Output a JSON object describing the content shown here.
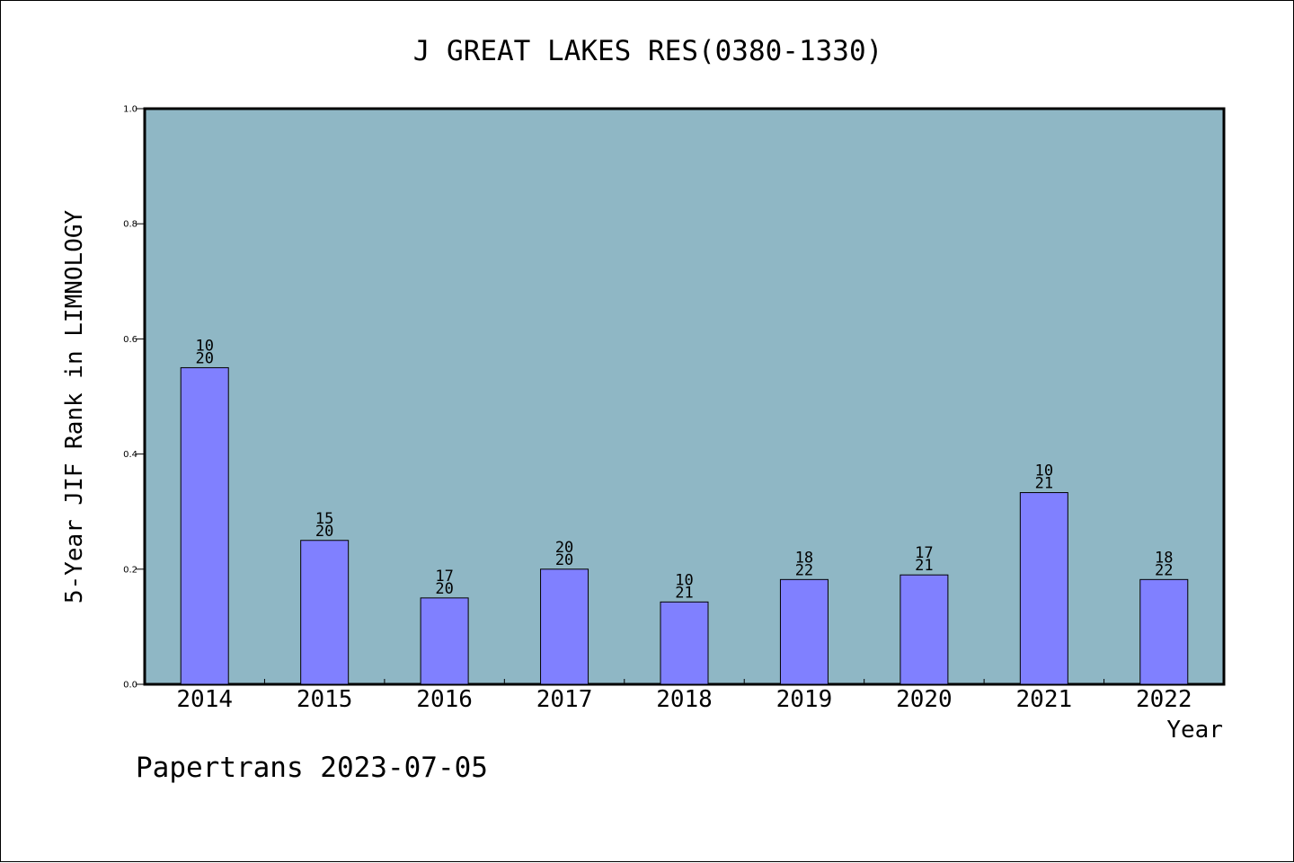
{
  "chart_data": {
    "type": "bar",
    "title": "J GREAT LAKES RES(0380-1330)",
    "xlabel": "Year",
    "ylabel": "5-Year JIF Rank in LIMNOLOGY",
    "categories": [
      "2014",
      "2015",
      "2016",
      "2017",
      "2018",
      "2019",
      "2020",
      "2021",
      "2022"
    ],
    "values": [
      0.55,
      0.25,
      0.15,
      0.2,
      0.143,
      0.182,
      0.19,
      0.333,
      0.182
    ],
    "labels_top": [
      "10",
      "15",
      "17",
      "20",
      "10",
      "18",
      "17",
      "10",
      "18"
    ],
    "labels_bottom": [
      "20",
      "20",
      "20",
      "20",
      "21",
      "22",
      "21",
      "21",
      "22"
    ],
    "ylim": [
      0,
      1.0
    ],
    "yticks": [
      "0.0",
      "0.2",
      "0.4",
      "0.6",
      "0.8",
      "1.0"
    ],
    "grid": false,
    "legend": "none"
  },
  "footer": {
    "credit": "Papertrans 2023-07-05"
  },
  "colors": {
    "plot_background": "#8fb7c5",
    "bar_fill": "#8080ff",
    "axis": "#000000",
    "page_background": "#ffffff"
  }
}
